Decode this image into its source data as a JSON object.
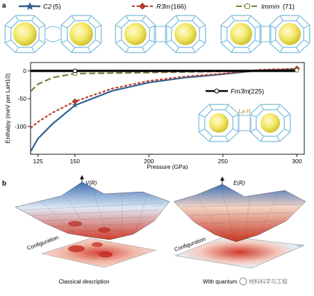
{
  "panel_a": {
    "label": "a",
    "structures": [
      {
        "name": "C2",
        "number": "(5)",
        "color": "#2f5f8f"
      },
      {
        "name": "R3̄m",
        "number": "(166)",
        "color": "#c23a2a"
      },
      {
        "name": "Immm",
        "number": "(71)",
        "color": "#7a7a3a"
      }
    ],
    "inset": {
      "name": "Fm3̄m",
      "number": "(225)",
      "atoms": "La H"
    },
    "chart_data": {
      "type": "line",
      "xlabel": "Pressure (GPa)",
      "ylabel": "Enthalpy (meV per LaH10)",
      "xlim": [
        120,
        305
      ],
      "ylim": [
        -150,
        15
      ],
      "x_ticks": [
        125,
        150,
        200,
        250,
        300
      ],
      "y_ticks": [
        0,
        -50,
        -100
      ],
      "grid": false,
      "series": [
        {
          "name": "C2 (5)",
          "color": "#2f5f8f",
          "dash": "solid",
          "marker": "star",
          "x": [
            120,
            125,
            135,
            150,
            175,
            200,
            225,
            250,
            275,
            300
          ],
          "y": [
            -145,
            -122,
            -95,
            -62,
            -36,
            -21,
            -12,
            -6,
            1,
            3
          ],
          "markers_at": [
            150,
            300
          ]
        },
        {
          "name": "R3̄m (166)",
          "color": "#c23a2a",
          "dash": "dashed",
          "marker": "diamond",
          "x": [
            120,
            125,
            135,
            150,
            175,
            200,
            225,
            250,
            275,
            300
          ],
          "y": [
            -103,
            -92,
            -75,
            -55,
            -32,
            -18,
            -10,
            -5,
            2,
            4
          ],
          "markers_at": [
            150,
            300
          ]
        },
        {
          "name": "Immm (71)",
          "color": "#7a7a3a",
          "dash": "long-dash",
          "marker": "pentagon",
          "x": [
            120,
            125,
            135,
            150,
            175,
            200,
            225,
            250,
            275,
            300
          ],
          "y": [
            -37,
            -24,
            -12,
            -5,
            -4,
            -3,
            -2,
            -1,
            0,
            1
          ],
          "markers_at": [
            150,
            300
          ]
        },
        {
          "name": "Fm3̄m (225)",
          "color": "#000000",
          "dash": "solid",
          "marker": "circle",
          "x": [
            120,
            300
          ],
          "y": [
            0,
            0
          ],
          "markers_at": [
            150
          ]
        }
      ]
    }
  },
  "panel_b": {
    "label": "b",
    "left": {
      "axis": "V(R)",
      "plane_label": "Configuration",
      "caption": "Classical description"
    },
    "right": {
      "axis": "E(R)",
      "plane_label": "Configuration",
      "caption": "With quantum"
    },
    "watermark": "材料科学与工程"
  }
}
